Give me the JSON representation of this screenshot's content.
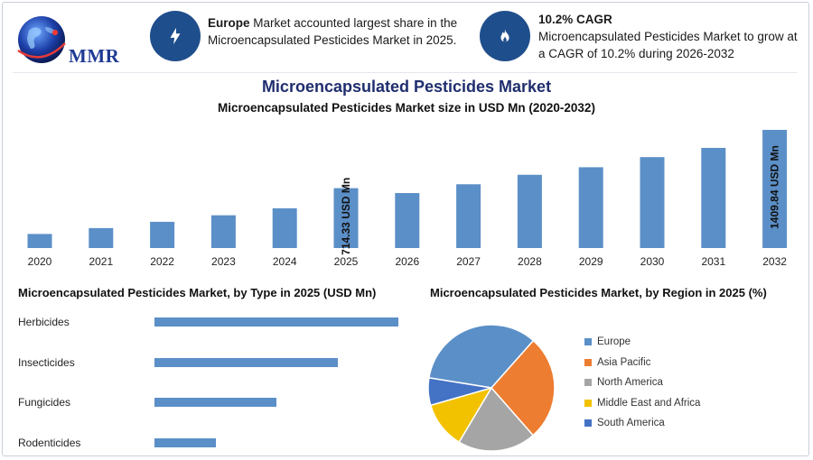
{
  "brand": {
    "logo_text": "MMR"
  },
  "highlights": [
    {
      "icon": "lightning-icon",
      "bold": "Europe",
      "text": " Market accounted largest share in the Microencapsulated Pesticides Market in 2025."
    },
    {
      "icon": "flame-icon",
      "bold": "10.2% CAGR",
      "text": "Microencapsulated Pesticides Market to grow at a CAGR of 10.2% during 2026-2032"
    }
  ],
  "title": "Microencapsulated Pesticides Market",
  "colors": {
    "accent": "#1f4e8c",
    "bar": "#5b8fc7",
    "title": "#1f2e6e"
  },
  "chart_data": [
    {
      "type": "bar",
      "title": "Microencapsulated Pesticides Market size in USD Mn (2020-2032)",
      "categories": [
        "2020",
        "2021",
        "2022",
        "2023",
        "2024",
        "2025",
        "2026",
        "2027",
        "2028",
        "2029",
        "2030",
        "2031",
        "2032"
      ],
      "values": [
        168,
        238,
        313,
        391,
        474,
        714.33,
        656,
        761,
        874,
        964,
        1085,
        1195,
        1409.84
      ],
      "annotations": [
        {
          "category": "2025",
          "label": "714.33 USD Mn"
        },
        {
          "category": "2032",
          "label": "1409.84 USD Mn"
        }
      ],
      "color": "#5b8fc7"
    },
    {
      "type": "bar",
      "orientation": "horizontal",
      "title": "Microencapsulated Pesticides Market, by Type in 2025 (USD Mn)",
      "categories": [
        "Herbicides",
        "Insecticides",
        "Fungicides",
        "Rodenticides"
      ],
      "values": [
        300,
        226,
        150,
        76
      ],
      "color": "#5b8fc7"
    },
    {
      "type": "pie",
      "title": "Microencapsulated Pesticides Market, by Region in 2025 (%)",
      "categories": [
        "Europe",
        "Asia Pacific",
        "North America",
        "Middle East and Africa",
        "South America"
      ],
      "values": [
        34,
        27,
        20,
        12,
        7
      ],
      "colors": [
        "#5b8fc7",
        "#ed7d31",
        "#a5a5a5",
        "#f2c200",
        "#4472c4"
      ],
      "legend": "right"
    }
  ]
}
